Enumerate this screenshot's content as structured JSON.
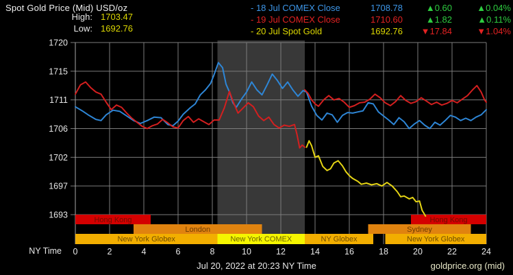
{
  "header": {
    "title": "Spot Gold Price (Mid) USD/oz",
    "high_label": "High:",
    "high_value": "1703.47",
    "low_label": "Low:",
    "low_value": "1692.76",
    "legend": [
      {
        "label": "- 18 Jul COMEX Close",
        "value": "1708.78",
        "change": "▲0.60",
        "change_pct": "▲0.04%",
        "series_color": "#3d96e8",
        "change_color": "#2ecc40"
      },
      {
        "label": "- 19 Jul COMEX Close",
        "value": "1710.60",
        "change": "▲1.82",
        "change_pct": "▲0.11%",
        "series_color": "#e32222",
        "change_color": "#2ecc40"
      },
      {
        "label": "- 20 Jul Spot Gold",
        "value": "1692.76",
        "change": "▼17.84",
        "change_pct": "▼1.04%",
        "series_color": "#ddd802",
        "change_color": "#e32222"
      }
    ]
  },
  "chart_data": {
    "type": "line",
    "title": "Spot Gold Price (Mid) USD/oz",
    "xlabel": "NY Time",
    "ylabel": "USD/oz",
    "xlim": [
      0,
      24
    ],
    "x_ticks": [
      0,
      2,
      4,
      6,
      8,
      10,
      12,
      14,
      16,
      18,
      20,
      22,
      24
    ],
    "y_ticks": [
      1720,
      1715,
      1711,
      1706,
      1702,
      1697,
      1693
    ],
    "grid": true,
    "grid_color": "#7d7d7d",
    "background": "#000000",
    "shaded_region": {
      "start_hour": 8.3,
      "end_hour": 13.4,
      "color": "#383838",
      "meaning": "New York COMEX session"
    },
    "series": [
      {
        "id": "blue",
        "name": "18 Jul COMEX Close",
        "color": "#2e86d6",
        "segments": [
          [
            [
              0,
              1709.8
            ],
            [
              0.4,
              1709.1
            ],
            [
              0.8,
              1708.3
            ],
            [
              1.2,
              1707.6
            ],
            [
              1.5,
              1707.4
            ],
            [
              1.8,
              1708.4
            ],
            [
              2.2,
              1709.2
            ],
            [
              2.6,
              1709.0
            ],
            [
              3,
              1708.2
            ],
            [
              3.4,
              1707.4
            ],
            [
              3.8,
              1706.9
            ],
            [
              4.2,
              1707.4
            ],
            [
              4.6,
              1708.0
            ],
            [
              5,
              1707.9
            ],
            [
              5.4,
              1706.7
            ],
            [
              5.7,
              1706.5
            ],
            [
              6,
              1707.3
            ],
            [
              6.3,
              1708.5
            ],
            [
              6.7,
              1709.6
            ],
            [
              7,
              1710.3
            ],
            [
              7.3,
              1711.7
            ],
            [
              7.6,
              1712.4
            ],
            [
              7.9,
              1713.3
            ],
            [
              8.1,
              1714.5
            ],
            [
              8.35,
              1716.5
            ],
            [
              8.6,
              1715.6
            ],
            [
              8.8,
              1713.2
            ],
            [
              9,
              1712.1
            ],
            [
              9.2,
              1710.5
            ],
            [
              9.4,
              1709.7
            ],
            [
              9.7,
              1711.1
            ],
            [
              10,
              1712.1
            ],
            [
              10.3,
              1713.5
            ],
            [
              10.6,
              1712.4
            ],
            [
              10.9,
              1711.7
            ],
            [
              11.2,
              1713.1
            ],
            [
              11.5,
              1714.6
            ],
            [
              11.8,
              1713.7
            ],
            [
              12.1,
              1712.6
            ],
            [
              12.4,
              1713.5
            ],
            [
              12.7,
              1712.4
            ],
            [
              13,
              1711.5
            ],
            [
              13.3,
              1712.3
            ],
            [
              13.5,
              1712.1
            ],
            [
              13.8,
              1709.9
            ],
            [
              14.1,
              1708.3
            ],
            [
              14.4,
              1707.5
            ],
            [
              14.7,
              1708.7
            ],
            [
              15,
              1708.4
            ],
            [
              15.3,
              1707.1
            ],
            [
              15.6,
              1708.3
            ],
            [
              15.9,
              1708.8
            ],
            [
              16.2,
              1708.7
            ],
            [
              16.5,
              1708.9
            ],
            [
              16.8,
              1709.1
            ],
            [
              17.1,
              1710.5
            ],
            [
              17.4,
              1710.3
            ],
            [
              17.7,
              1708.9
            ],
            [
              18,
              1708.2
            ],
            [
              18.3,
              1707.5
            ],
            [
              18.6,
              1706.7
            ],
            [
              18.9,
              1707.9
            ],
            [
              19.2,
              1707.2
            ],
            [
              19.5,
              1706.0
            ],
            [
              19.8,
              1706.8
            ],
            [
              20.1,
              1707.4
            ],
            [
              20.4,
              1706.6
            ],
            [
              20.7,
              1706.0
            ],
            [
              21,
              1707.1
            ],
            [
              21.3,
              1706.6
            ],
            [
              21.6,
              1707.4
            ],
            [
              21.9,
              1708.3
            ],
            [
              22.2,
              1708.0
            ],
            [
              22.5,
              1707.4
            ],
            [
              22.8,
              1707.8
            ],
            [
              23.1,
              1707.4
            ],
            [
              23.4,
              1708.0
            ],
            [
              23.7,
              1708.4
            ],
            [
              24,
              1709.3
            ]
          ]
        ]
      },
      {
        "id": "red",
        "name": "19 Jul COMEX Close",
        "color": "#d41f1f",
        "segments": [
          [
            [
              0,
              1711.8
            ],
            [
              0.3,
              1713.1
            ],
            [
              0.6,
              1713.5
            ],
            [
              0.9,
              1712.7
            ],
            [
              1.2,
              1712.1
            ],
            [
              1.5,
              1711.8
            ],
            [
              1.8,
              1710.6
            ],
            [
              2.1,
              1709.3
            ],
            [
              2.4,
              1710.1
            ],
            [
              2.7,
              1709.7
            ],
            [
              3,
              1708.7
            ],
            [
              3.3,
              1707.8
            ],
            [
              3.6,
              1707.1
            ],
            [
              3.9,
              1706.4
            ],
            [
              4.2,
              1706.0
            ],
            [
              4.5,
              1706.5
            ],
            [
              4.8,
              1706.8
            ],
            [
              5.1,
              1707.6
            ],
            [
              5.4,
              1707.0
            ],
            [
              5.7,
              1706.3
            ],
            [
              6,
              1706.1
            ],
            [
              6.3,
              1707.4
            ],
            [
              6.6,
              1708.1
            ],
            [
              6.9,
              1707.1
            ],
            [
              7.2,
              1707.7
            ],
            [
              7.5,
              1707.2
            ],
            [
              7.8,
              1706.7
            ],
            [
              8.1,
              1707.5
            ],
            [
              8.4,
              1707.5
            ],
            [
              8.7,
              1709.6
            ],
            [
              9,
              1712.2
            ],
            [
              9.2,
              1710.8
            ],
            [
              9.5,
              1708.7
            ],
            [
              9.8,
              1709.6
            ],
            [
              10.1,
              1710.5
            ],
            [
              10.4,
              1709.8
            ],
            [
              10.7,
              1708.2
            ],
            [
              11,
              1707.4
            ],
            [
              11.3,
              1708.0
            ],
            [
              11.6,
              1706.7
            ],
            [
              11.9,
              1706.1
            ],
            [
              12.2,
              1706.6
            ],
            [
              12.5,
              1706.4
            ],
            [
              12.8,
              1706.7
            ],
            [
              12.95,
              1705.1
            ],
            [
              13.1,
              1703.3
            ],
            [
              13.25,
              1703.7
            ],
            [
              13.4,
              1703.4
            ]
          ],
          [
            [
              13.4,
              1712.4
            ],
            [
              13.6,
              1711.9
            ],
            [
              13.8,
              1711.0
            ],
            [
              14,
              1710.3
            ],
            [
              14.2,
              1709.9
            ],
            [
              14.5,
              1711.0
            ],
            [
              14.8,
              1711.6
            ],
            [
              15.1,
              1711.0
            ],
            [
              15.4,
              1711.2
            ],
            [
              15.7,
              1710.6
            ],
            [
              16,
              1709.7
            ],
            [
              16.3,
              1710.0
            ],
            [
              16.6,
              1710.5
            ],
            [
              16.9,
              1710.6
            ],
            [
              17.2,
              1711.1
            ],
            [
              17.5,
              1711.8
            ],
            [
              17.8,
              1711.3
            ],
            [
              18.1,
              1710.5
            ],
            [
              18.4,
              1710.0
            ],
            [
              18.7,
              1710.7
            ],
            [
              19,
              1711.6
            ],
            [
              19.3,
              1710.9
            ],
            [
              19.6,
              1710.4
            ],
            [
              19.9,
              1710.7
            ],
            [
              20.2,
              1711.3
            ],
            [
              20.5,
              1710.8
            ],
            [
              20.8,
              1710.2
            ],
            [
              21.1,
              1710.6
            ],
            [
              21.4,
              1710.1
            ],
            [
              21.7,
              1710.4
            ],
            [
              22,
              1710.9
            ],
            [
              22.3,
              1710.5
            ],
            [
              22.6,
              1711.1
            ],
            [
              22.9,
              1711.6
            ],
            [
              23.2,
              1712.4
            ],
            [
              23.45,
              1713.0
            ],
            [
              23.7,
              1712.1
            ],
            [
              23.9,
              1711.0
            ],
            [
              24,
              1710.6
            ]
          ]
        ]
      },
      {
        "id": "yellow",
        "name": "20 Jul Spot Gold",
        "color": "#e6d514",
        "segments": [
          [
            [
              13.5,
              1703.4
            ],
            [
              13.65,
              1704.3
            ],
            [
              13.8,
              1703.6
            ],
            [
              14,
              1702.0
            ],
            [
              14.2,
              1702.2
            ],
            [
              14.45,
              1700.4
            ],
            [
              14.7,
              1699.7
            ],
            [
              14.9,
              1700.0
            ],
            [
              15.1,
              1701.0
            ],
            [
              15.35,
              1701.4
            ],
            [
              15.6,
              1700.5
            ],
            [
              15.8,
              1699.5
            ],
            [
              16,
              1698.8
            ],
            [
              16.2,
              1698.3
            ],
            [
              16.5,
              1697.8
            ],
            [
              16.7,
              1697.3
            ],
            [
              17,
              1697.5
            ],
            [
              17.3,
              1697.2
            ],
            [
              17.6,
              1697.4
            ],
            [
              17.9,
              1697.0
            ],
            [
              18.2,
              1697.6
            ],
            [
              18.5,
              1697.0
            ],
            [
              18.8,
              1696.2
            ],
            [
              19,
              1695.5
            ],
            [
              19.2,
              1695.6
            ],
            [
              19.5,
              1695.2
            ],
            [
              19.7,
              1695.4
            ],
            [
              19.9,
              1694.8
            ],
            [
              20.1,
              1694.9
            ],
            [
              20.25,
              1693.6
            ],
            [
              20.35,
              1693.2
            ],
            [
              20.45,
              1692.8
            ]
          ]
        ]
      }
    ],
    "sessions": [
      {
        "row": 0,
        "label": "Hong Kong",
        "start": 0,
        "end": 4.4,
        "type": "hk"
      },
      {
        "row": 0,
        "label": "Hong Kong",
        "start": 19.6,
        "end": 24,
        "type": "hk"
      },
      {
        "row": 1,
        "label": "London",
        "start": 3.4,
        "end": 10.9,
        "type": "ldn"
      },
      {
        "row": 1,
        "label": "Sydney",
        "start": 17.1,
        "end": 23.1,
        "type": "ldn"
      },
      {
        "row": 2,
        "label": "New York Globex",
        "start": 0,
        "end": 8.3,
        "type": "glbx"
      },
      {
        "row": 2,
        "label": "New York COMEX",
        "start": 8.3,
        "end": 13.4,
        "type": "comex"
      },
      {
        "row": 2,
        "label": "NY Globex",
        "start": 13.4,
        "end": 17.4,
        "type": "glbx"
      },
      {
        "row": 2,
        "label": "New York Globex",
        "start": 18.1,
        "end": 24,
        "type": "glbx"
      }
    ],
    "session_colors": {
      "hk": {
        "bg": "#d40000",
        "text": "#6e0e00"
      },
      "ldn": {
        "bg": "#e0830f",
        "text": "#6e3c00"
      },
      "glbx": {
        "bg": "#f2ae00",
        "text": "#6e4a00"
      },
      "comex": {
        "bg": "#f5f500",
        "text": "#6e6200"
      }
    }
  },
  "footer": {
    "timestamp": "Jul 20, 2022 at 20:23 NY Time",
    "source": "goldprice.org (mid)"
  }
}
